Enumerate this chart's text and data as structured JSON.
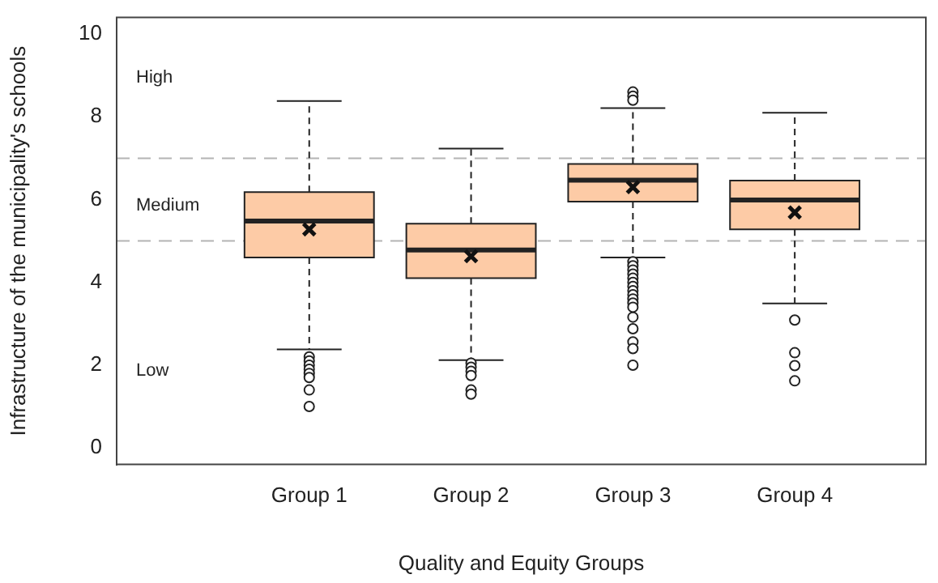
{
  "chart_data": {
    "type": "box",
    "xlabel": "Quality and Equity Groups",
    "ylabel": "Infrastructure of the municipality's schools",
    "categories": [
      "Group 1",
      "Group 2",
      "Group 3",
      "Group 4"
    ],
    "color": "#fdcba6",
    "boxes": [
      {
        "low": 2.38,
        "q1": 4.6,
        "median": 5.48,
        "q3": 6.18,
        "high": 8.38,
        "mean": 5.28,
        "outliers": [
          2.2,
          2.1,
          2.0,
          1.9,
          1.8,
          1.7,
          1.4,
          1.0
        ]
      },
      {
        "low": 2.12,
        "q1": 4.1,
        "median": 4.78,
        "q3": 5.42,
        "high": 7.23,
        "mean": 4.63,
        "outliers": [
          2.05,
          1.95,
          1.85,
          1.75,
          1.4,
          1.3
        ]
      },
      {
        "low": 4.6,
        "q1": 5.95,
        "median": 6.47,
        "q3": 6.86,
        "high": 8.21,
        "mean": 6.3,
        "outliers": [
          8.6,
          8.5,
          8.4,
          4.5,
          4.4,
          4.3,
          4.2,
          4.1,
          4.0,
          3.9,
          3.8,
          3.7,
          3.6,
          3.5,
          3.4,
          3.16,
          2.88,
          2.56,
          2.4,
          2.0
        ]
      },
      {
        "low": 3.49,
        "q1": 5.28,
        "median": 5.99,
        "q3": 6.46,
        "high": 8.1,
        "mean": 5.69,
        "outliers": [
          3.09,
          2.3,
          1.99,
          1.62
        ]
      }
    ],
    "ylim": [
      -0.4,
      10.4
    ],
    "yticks": [
      0,
      2,
      4,
      6,
      8,
      10
    ],
    "grid": false,
    "legend": false,
    "ref_lines": [
      {
        "axis": "y",
        "value": 7,
        "color": "#b4b4b4",
        "line_style": "dashed"
      },
      {
        "axis": "y",
        "value": 5,
        "color": "#b4b4b4",
        "line_style": "dashed"
      }
    ],
    "annotations": [
      "High",
      "Medium",
      "Low"
    ]
  }
}
